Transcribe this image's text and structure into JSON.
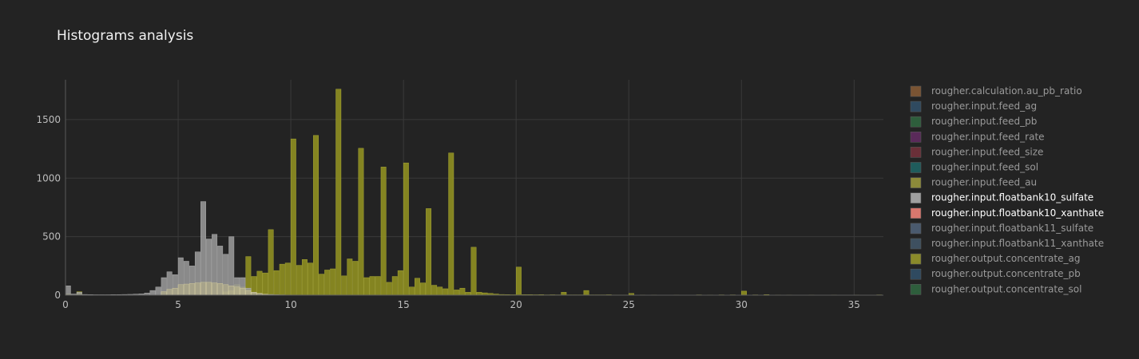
{
  "chart_data": {
    "type": "bar",
    "title": "Histograms analysis",
    "xlabel": "",
    "ylabel": "",
    "xlim": [
      0,
      36.3
    ],
    "ylim": [
      0,
      1840
    ],
    "x_ticks": [
      0,
      5,
      10,
      15,
      20,
      25,
      30,
      35
    ],
    "y_ticks": [
      0,
      500,
      1000,
      1500
    ],
    "grid": true,
    "legend_placement": "right",
    "bin_width": 0.25,
    "series": [
      {
        "name": "rougher.calculation.au_pb_ratio",
        "color": "#7a5433",
        "active": false,
        "bins": []
      },
      {
        "name": "rougher.input.feed_ag",
        "color": "#2f4a60",
        "active": false,
        "bins": []
      },
      {
        "name": "rougher.input.feed_pb",
        "color": "#2e5e3c",
        "active": false,
        "bins": []
      },
      {
        "name": "rougher.input.feed_rate",
        "color": "#5a2a5a",
        "active": false,
        "bins": []
      },
      {
        "name": "rougher.input.feed_size",
        "color": "#6a2f38",
        "active": false,
        "bins": []
      },
      {
        "name": "rougher.input.feed_sol",
        "color": "#1f5c5c",
        "active": false,
        "bins": []
      },
      {
        "name": "rougher.input.feed_au",
        "color": "#8c8a3a",
        "active": false,
        "bins": []
      },
      {
        "name": "rougher.input.floatbank10_sulfate",
        "color": "#a0a0a0",
        "active": true,
        "bins": [
          [
            0,
            80
          ],
          [
            0.25,
            10
          ],
          [
            0.5,
            25
          ],
          [
            0.75,
            6
          ],
          [
            1,
            5
          ],
          [
            1.25,
            4
          ],
          [
            1.5,
            4
          ],
          [
            1.75,
            4
          ],
          [
            2,
            5
          ],
          [
            2.25,
            5
          ],
          [
            2.5,
            6
          ],
          [
            2.75,
            7
          ],
          [
            3,
            9
          ],
          [
            3.25,
            11
          ],
          [
            3.5,
            18
          ],
          [
            3.75,
            40
          ],
          [
            4,
            70
          ],
          [
            4.25,
            150
          ],
          [
            4.5,
            200
          ],
          [
            4.75,
            175
          ],
          [
            5,
            320
          ],
          [
            5.25,
            290
          ],
          [
            5.5,
            250
          ],
          [
            5.75,
            370
          ],
          [
            6,
            800
          ],
          [
            6.25,
            480
          ],
          [
            6.5,
            520
          ],
          [
            6.75,
            420
          ],
          [
            7,
            350
          ],
          [
            7.25,
            500
          ],
          [
            7.5,
            150
          ],
          [
            7.75,
            150
          ],
          [
            8,
            60
          ],
          [
            8.25,
            25
          ],
          [
            8.5,
            15
          ],
          [
            8.75,
            8
          ],
          [
            9,
            6
          ],
          [
            9.25,
            4
          ],
          [
            9.5,
            3
          ],
          [
            9.75,
            2
          ],
          [
            10,
            2
          ]
        ]
      },
      {
        "name": "rougher.input.floatbank10_xanthate",
        "color": "#d9776e",
        "active": true,
        "bins": [
          [
            4.25,
            30
          ],
          [
            4.5,
            50
          ],
          [
            4.75,
            60
          ],
          [
            5,
            90
          ],
          [
            5.25,
            95
          ],
          [
            5.5,
            100
          ],
          [
            5.75,
            105
          ],
          [
            6,
            110
          ],
          [
            6.25,
            110
          ],
          [
            6.5,
            105
          ],
          [
            6.75,
            100
          ],
          [
            7,
            90
          ],
          [
            7.25,
            80
          ],
          [
            7.5,
            70
          ],
          [
            7.75,
            60
          ],
          [
            8,
            40
          ],
          [
            8.25,
            25
          ],
          [
            8.5,
            15
          ],
          [
            8.75,
            8
          ]
        ]
      },
      {
        "name": "rougher.input.floatbank11_sulfate",
        "color": "#4a5a6e",
        "active": false,
        "bins": []
      },
      {
        "name": "rougher.input.floatbank11_xanthate",
        "color": "#3e5060",
        "active": false,
        "bins": []
      },
      {
        "name": "rougher.output.concentrate_ag",
        "color": "#8a8a2a",
        "active": false,
        "bins": [
          [
            0,
            10
          ],
          [
            0.5,
            30
          ],
          [
            7,
            30
          ],
          [
            7.25,
            40
          ],
          [
            7.5,
            90
          ],
          [
            7.75,
            70
          ],
          [
            8,
            330
          ],
          [
            8.25,
            160
          ],
          [
            8.5,
            205
          ],
          [
            8.75,
            190
          ],
          [
            9,
            560
          ],
          [
            9.25,
            210
          ],
          [
            9.5,
            265
          ],
          [
            9.75,
            275
          ],
          [
            10,
            1335
          ],
          [
            10.25,
            255
          ],
          [
            10.5,
            305
          ],
          [
            10.75,
            275
          ],
          [
            11,
            1365
          ],
          [
            11.25,
            180
          ],
          [
            11.5,
            215
          ],
          [
            11.75,
            225
          ],
          [
            12,
            1760
          ],
          [
            12.25,
            165
          ],
          [
            12.5,
            310
          ],
          [
            12.75,
            290
          ],
          [
            13,
            1255
          ],
          [
            13.25,
            150
          ],
          [
            13.5,
            160
          ],
          [
            13.75,
            160
          ],
          [
            14,
            1095
          ],
          [
            14.25,
            110
          ],
          [
            14.5,
            160
          ],
          [
            14.75,
            210
          ],
          [
            15,
            1130
          ],
          [
            15.25,
            70
          ],
          [
            15.5,
            145
          ],
          [
            15.75,
            105
          ],
          [
            16,
            740
          ],
          [
            16.25,
            85
          ],
          [
            16.5,
            70
          ],
          [
            16.75,
            55
          ],
          [
            17,
            1215
          ],
          [
            17.25,
            45
          ],
          [
            17.5,
            60
          ],
          [
            17.75,
            25
          ],
          [
            18,
            410
          ],
          [
            18.25,
            25
          ],
          [
            18.5,
            20
          ],
          [
            18.75,
            15
          ],
          [
            19,
            10
          ],
          [
            19.25,
            6
          ],
          [
            19.5,
            5
          ],
          [
            19.75,
            4
          ],
          [
            20,
            240
          ],
          [
            20.25,
            5
          ],
          [
            20.5,
            5
          ],
          [
            20.75,
            4
          ],
          [
            21,
            5
          ],
          [
            21.25,
            3
          ],
          [
            21.5,
            4
          ],
          [
            21.75,
            3
          ],
          [
            22,
            25
          ],
          [
            22.25,
            3
          ],
          [
            22.5,
            3
          ],
          [
            22.75,
            3
          ],
          [
            23,
            40
          ],
          [
            23.25,
            3
          ],
          [
            23.5,
            3
          ],
          [
            23.75,
            3
          ],
          [
            24,
            4
          ],
          [
            24.25,
            2
          ],
          [
            24.5,
            2
          ],
          [
            24.75,
            2
          ],
          [
            25,
            15
          ],
          [
            25.5,
            2
          ],
          [
            26,
            2
          ],
          [
            27,
            2
          ],
          [
            28,
            3
          ],
          [
            28.5,
            2
          ],
          [
            29,
            3
          ],
          [
            29.5,
            3
          ],
          [
            30,
            35
          ],
          [
            30.5,
            3
          ],
          [
            31,
            5
          ],
          [
            31.5,
            2
          ],
          [
            32,
            2
          ],
          [
            33,
            2
          ],
          [
            34,
            2
          ],
          [
            35,
            2
          ],
          [
            36,
            3
          ]
        ]
      },
      {
        "name": "rougher.output.concentrate_pb",
        "color": "#2f4a60",
        "active": false,
        "bins": []
      },
      {
        "name": "rougher.output.concentrate_sol",
        "color": "#2e5e3c",
        "active": false,
        "bins": []
      }
    ]
  }
}
